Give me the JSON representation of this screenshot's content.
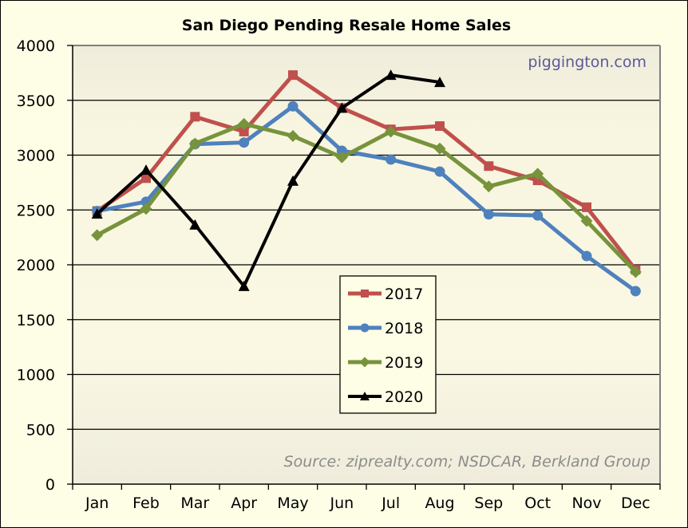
{
  "chart_data": {
    "type": "line",
    "title": "San Diego Pending Resale Home Sales",
    "xlabel": "",
    "ylabel": "",
    "categories": [
      "Jan",
      "Feb",
      "Mar",
      "Apr",
      "May",
      "Jun",
      "Jul",
      "Aug",
      "Sep",
      "Oct",
      "Nov",
      "Dec"
    ],
    "ylim": [
      0,
      4000
    ],
    "yticks": [
      0,
      500,
      1000,
      1500,
      2000,
      2500,
      3000,
      3500,
      4000
    ],
    "grid": true,
    "legend_position": "center-bottom",
    "watermark": "piggington.com",
    "source_note": "Source: ziprealty.com; NSDCAR, Berkland Group",
    "series": [
      {
        "name": "2017",
        "color": "#c0504d",
        "marker": "square",
        "values": [
          2490,
          2790,
          3350,
          3215,
          3730,
          3430,
          3235,
          3265,
          2900,
          2770,
          2525,
          1955
        ]
      },
      {
        "name": "2018",
        "color": "#4f81bd",
        "marker": "circle",
        "values": [
          2490,
          2575,
          3100,
          3115,
          3445,
          3040,
          2960,
          2850,
          2460,
          2450,
          2080,
          1760
        ]
      },
      {
        "name": "2019",
        "color": "#77933c",
        "marker": "diamond",
        "values": [
          2270,
          2510,
          3105,
          3285,
          3175,
          2980,
          3215,
          3060,
          2715,
          2830,
          2400,
          1935
        ]
      },
      {
        "name": "2020",
        "color": "#000000",
        "marker": "triangle",
        "values": [
          2465,
          2865,
          2365,
          1805,
          2765,
          3430,
          3730,
          3665,
          null,
          null,
          null,
          null
        ]
      }
    ]
  }
}
